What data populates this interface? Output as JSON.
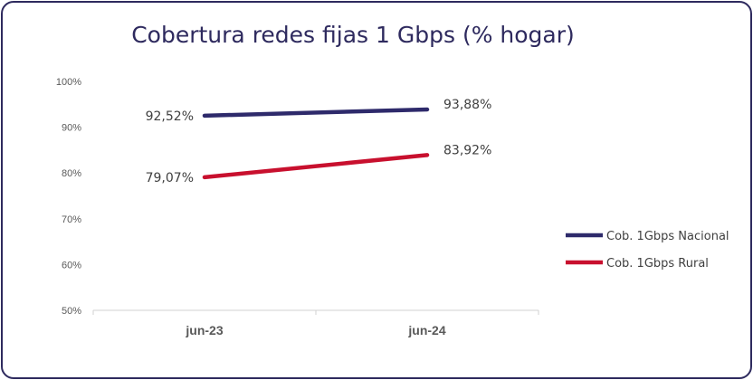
{
  "chart_data": {
    "type": "line",
    "title": "Cobertura redes fijas 1 Gbps (% hogar)",
    "categories": [
      "jun-23",
      "jun-24"
    ],
    "ylim": [
      50,
      100
    ],
    "yticks": [
      50,
      60,
      70,
      80,
      90,
      100
    ],
    "ytick_labels": [
      "50%",
      "60%",
      "70%",
      "80%",
      "90%",
      "100%"
    ],
    "grid": false,
    "legend_position": "right",
    "series": [
      {
        "name": "Cob. 1Gbps Nacional",
        "values": [
          92.52,
          93.88
        ],
        "labels": [
          "92,52%",
          "93,88%"
        ],
        "color": "#2e2a6b"
      },
      {
        "name": "Cob. 1Gbps Rural",
        "values": [
          79.07,
          83.92
        ],
        "labels": [
          "79,07%",
          "83,92%"
        ],
        "color": "#c8102e"
      }
    ]
  }
}
